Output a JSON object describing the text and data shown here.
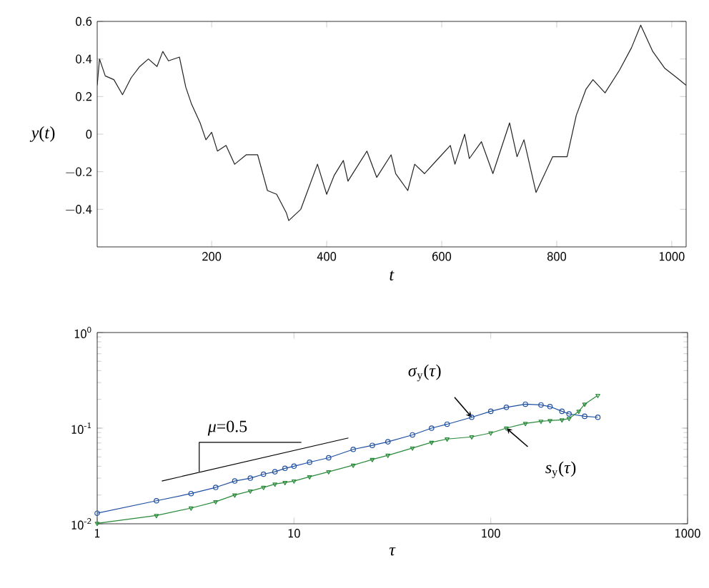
{
  "chart_data": [
    {
      "type": "line",
      "xlabel": "*t*",
      "ylabel": "*y*(*t*)",
      "color": "#222222",
      "xlim": [
        1,
        1025
      ],
      "ylim": [
        -0.6,
        0.6
      ],
      "xticks": [
        200,
        400,
        600,
        800,
        1000
      ],
      "yticks": [
        {
          "value": -0.4,
          "label": "−0.4"
        },
        {
          "value": -0.2,
          "label": "−0.2"
        },
        0,
        0.2,
        0.4,
        0.6
      ],
      "x": [
        1,
        5,
        15,
        30,
        45,
        60,
        75,
        90,
        105,
        115,
        125,
        144,
        155,
        165,
        180,
        190,
        200,
        210,
        225,
        240,
        260,
        280,
        297,
        313,
        330,
        334,
        355,
        384,
        400,
        413,
        429,
        437,
        470,
        487,
        512,
        520,
        541,
        553,
        570,
        594,
        615,
        623,
        640,
        648,
        669,
        689,
        718,
        731,
        743,
        764,
        793,
        818,
        834,
        851,
        863,
        884,
        909,
        930,
        946,
        967,
        988,
        1009,
        1025
      ],
      "values": [
        0.26,
        0.4,
        0.31,
        0.29,
        0.21,
        0.3,
        0.36,
        0.4,
        0.36,
        0.44,
        0.39,
        0.41,
        0.25,
        0.16,
        0.06,
        -0.03,
        0.01,
        -0.09,
        -0.06,
        -0.16,
        -0.11,
        -0.11,
        -0.3,
        -0.32,
        -0.42,
        -0.46,
        -0.4,
        -0.16,
        -0.32,
        -0.22,
        -0.14,
        -0.25,
        -0.09,
        -0.23,
        -0.11,
        -0.21,
        -0.3,
        -0.16,
        -0.21,
        -0.13,
        -0.06,
        -0.16,
        0.0,
        -0.13,
        -0.04,
        -0.21,
        0.06,
        -0.12,
        -0.03,
        -0.31,
        -0.12,
        -0.12,
        0.1,
        0.24,
        0.29,
        0.22,
        0.34,
        0.46,
        0.58,
        0.44,
        0.35,
        0.3,
        0.26
      ]
    },
    {
      "type": "line",
      "log": "xy",
      "xlabel": "*τ*",
      "xlim": [
        1,
        1000
      ],
      "ylim": [
        0.01,
        1
      ],
      "xticks": [
        1,
        10,
        100,
        1000
      ],
      "yticks": [
        {
          "value": 0.01,
          "label": "10$^{-2}$"
        },
        {
          "value": 0.1,
          "label": "10$^{-1}$"
        },
        {
          "value": 1,
          "label": "10$^{0}$"
        }
      ],
      "series": [
        {
          "color": "#1f4fa0",
          "marker": "circle",
          "x": [
            1,
            2,
            3,
            4,
            5,
            6,
            7,
            8,
            9,
            10,
            12,
            15,
            20,
            25,
            30,
            40,
            50,
            60,
            80,
            100,
            120,
            150,
            180,
            200,
            230,
            250,
            300,
            350
          ],
          "values": [
            0.0129,
            0.0174,
            0.0207,
            0.024,
            0.028,
            0.03,
            0.033,
            0.035,
            0.038,
            0.04,
            0.044,
            0.049,
            0.06,
            0.066,
            0.072,
            0.085,
            0.1,
            0.11,
            0.13,
            0.15,
            0.165,
            0.178,
            0.175,
            0.168,
            0.15,
            0.141,
            0.133,
            0.13
          ]
        },
        {
          "color": "#2a8a3a",
          "marker": "triangle",
          "x": [
            1,
            2,
            3,
            4,
            5,
            6,
            7,
            8,
            9,
            10,
            12,
            15,
            20,
            25,
            30,
            40,
            50,
            60,
            80,
            100,
            120,
            150,
            180,
            200,
            230,
            250,
            280,
            300,
            350
          ],
          "values": [
            0.0101,
            0.0122,
            0.0146,
            0.017,
            0.02,
            0.022,
            0.024,
            0.026,
            0.027,
            0.028,
            0.031,
            0.035,
            0.041,
            0.047,
            0.052,
            0.062,
            0.071,
            0.077,
            0.081,
            0.089,
            0.1,
            0.112,
            0.118,
            0.12,
            0.122,
            0.126,
            0.15,
            0.178,
            0.22
          ]
        },
        {
          "color": "#000000",
          "marker": "none",
          "x": [
            2.13,
            18.9
          ],
          "values": [
            0.028,
            0.079
          ]
        },
        {
          "color": "#000000",
          "marker": "none",
          "x": [
            3.3,
            3.3,
            10.9
          ],
          "values": [
            0.035,
            0.071,
            0.071
          ]
        }
      ],
      "annotations": [
        {
          "text": "*μ*=0.5",
          "x": 4.6,
          "y": 0.074
        },
        {
          "text": "*σ*$_{y}$(*τ*)",
          "x": 80,
          "y": 0.13
        },
        {
          "text": "*s*$_{y}$(*τ*)",
          "x": 120,
          "y": 0.1
        }
      ]
    }
  ]
}
